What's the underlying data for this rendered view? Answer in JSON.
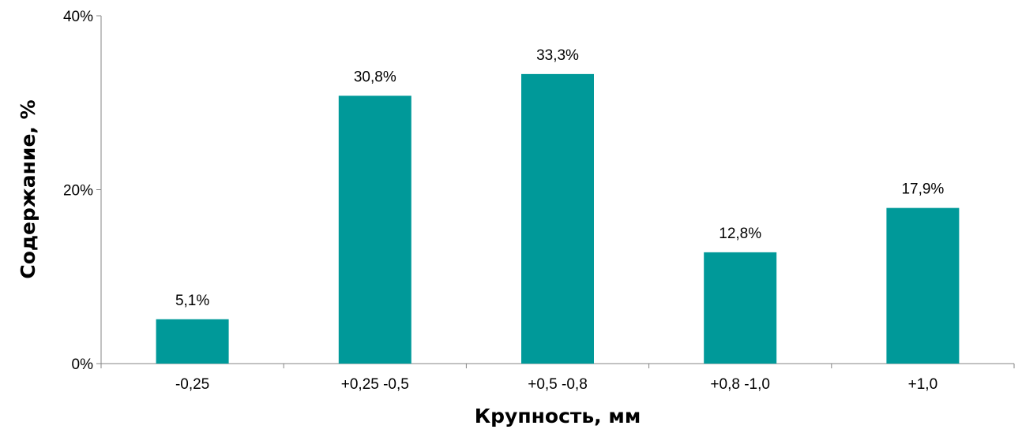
{
  "chart_data": {
    "type": "bar",
    "categories": [
      "-0,25",
      "+0,25 -0,5",
      "+0,5 -0,8",
      "+0,8 -1,0",
      "+1,0"
    ],
    "values": [
      5.1,
      30.8,
      33.3,
      12.8,
      17.9
    ],
    "data_labels": [
      "5,1%",
      "30,8%",
      "33,3%",
      "12,8%",
      "17,9%"
    ],
    "xlabel": "Крупность, мм",
    "ylabel": "Содержание, %",
    "ylim": [
      0,
      40
    ],
    "y_ticks": [
      0,
      20,
      40
    ],
    "y_tick_labels": [
      "0%",
      "20%",
      "40%"
    ],
    "grid": false,
    "legend": "none",
    "bar_color": "#009999",
    "axis_color": "#868686"
  }
}
